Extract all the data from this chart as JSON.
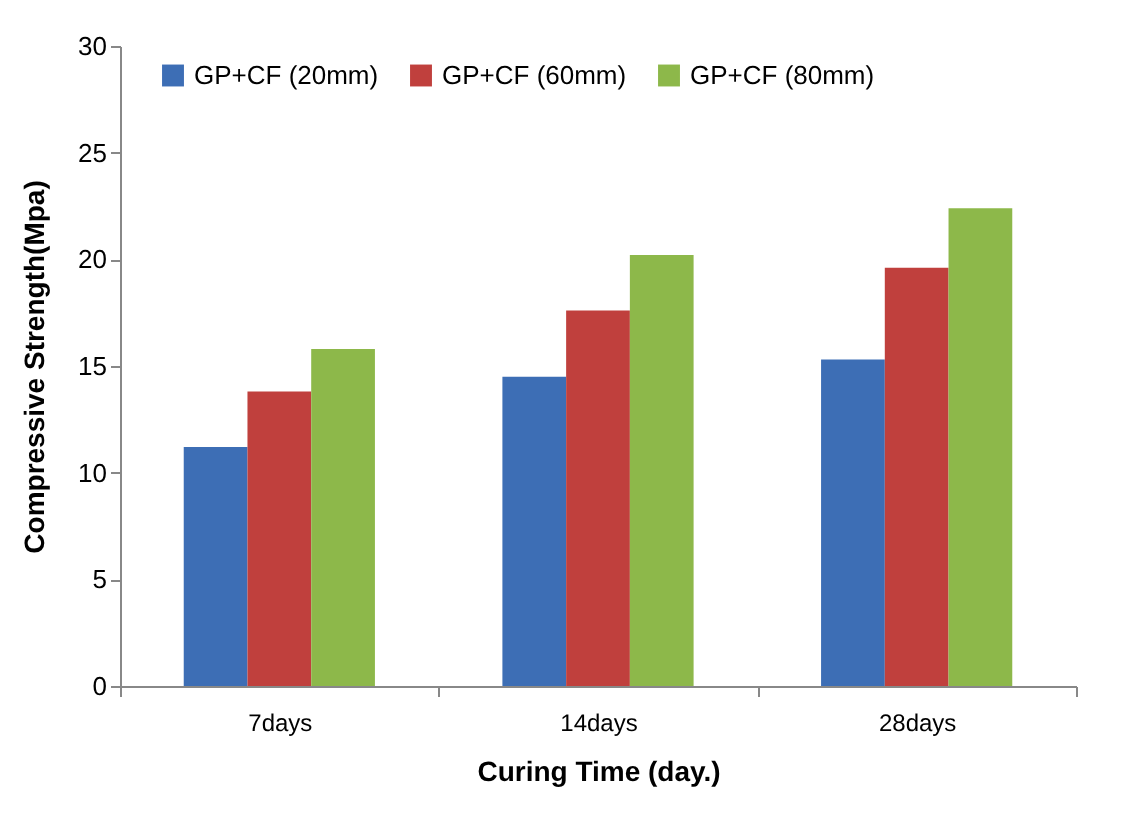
{
  "chart_data": {
    "type": "bar",
    "xlabel": "Curing Time (day.)",
    "ylabel": "Compressive Strength(Mpa)",
    "categories": [
      "7days",
      "14days",
      "28days"
    ],
    "series": [
      {
        "name": "GP+CF (20mm)",
        "color": "#3d6eb5",
        "values": [
          11.2,
          14.5,
          15.3
        ]
      },
      {
        "name": "GP+CF (60mm)",
        "color": "#c0403d",
        "values": [
          13.8,
          17.6,
          19.6
        ]
      },
      {
        "name": "GP+CF (80mm)",
        "color": "#8db84a",
        "values": [
          15.8,
          20.2,
          22.4
        ]
      }
    ],
    "ylim": [
      0,
      30
    ],
    "yticks": [
      0,
      5,
      10,
      15,
      20,
      25,
      30
    ],
    "grid": false,
    "legend": "top left"
  }
}
